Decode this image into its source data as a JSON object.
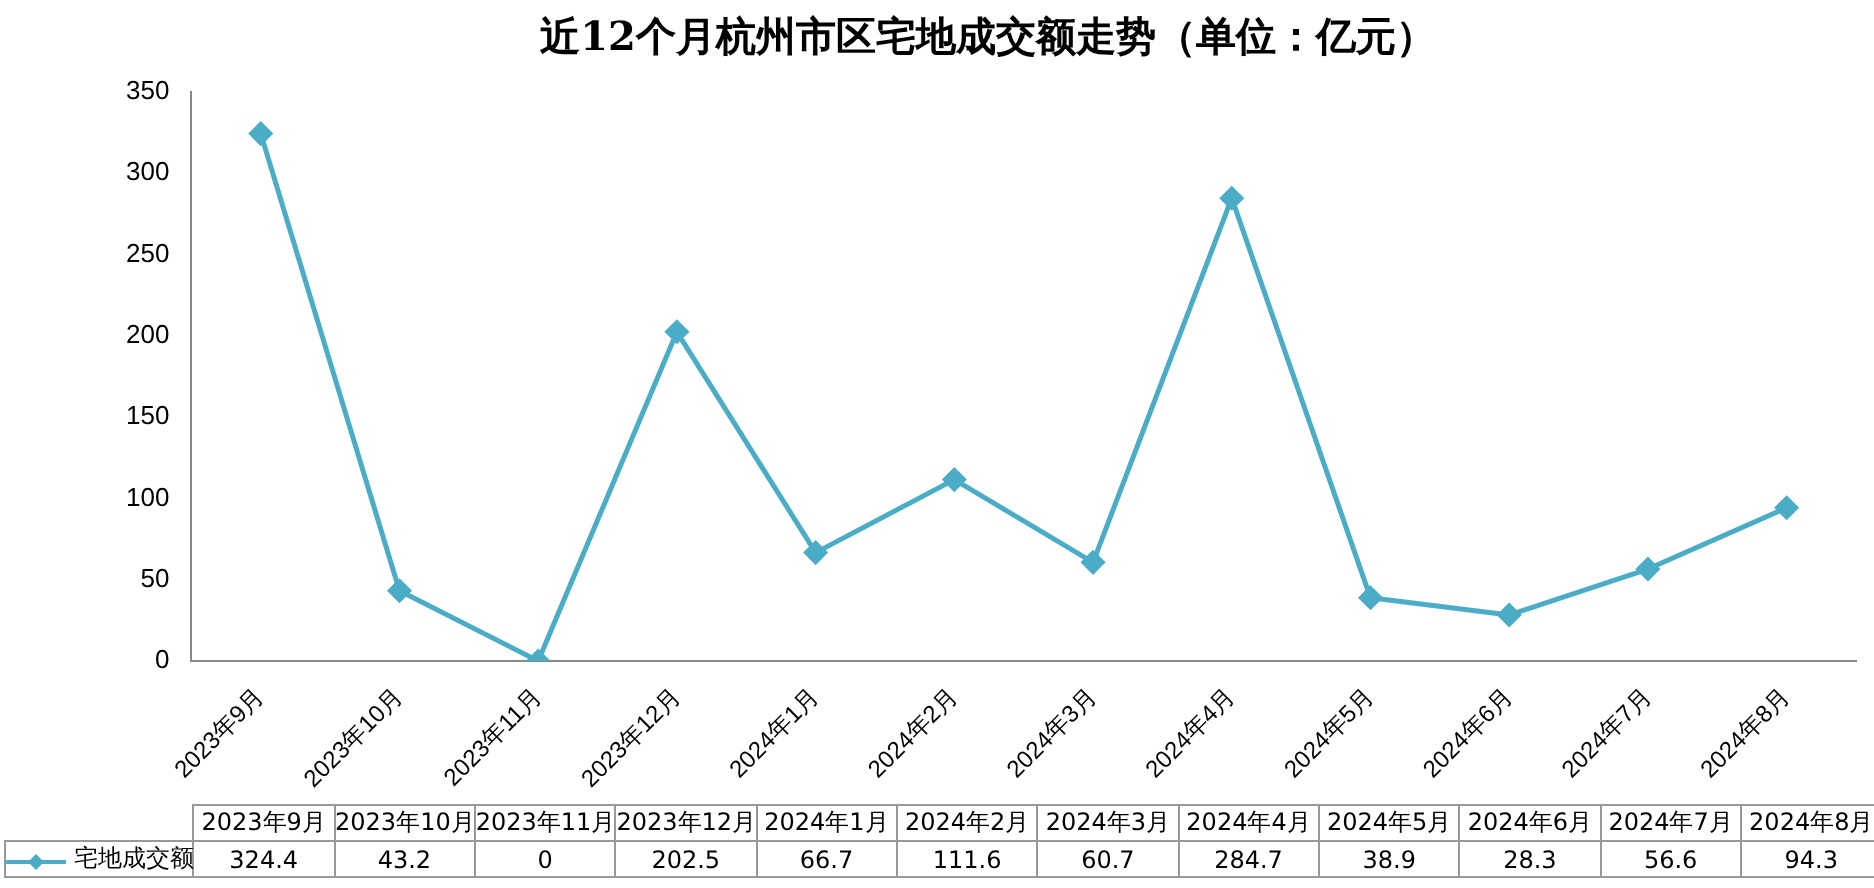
{
  "chart_data": {
    "type": "line",
    "title": "近12个月杭州市区宅地成交额走势（单位：亿元）",
    "categories": [
      "2023年9月",
      "2023年10月",
      "2023年11月",
      "2023年12月",
      "2024年1月",
      "2024年2月",
      "2024年3月",
      "2024年4月",
      "2024年5月",
      "2024年6月",
      "2024年7月",
      "2024年8月"
    ],
    "series": [
      {
        "name": "宅地成交额",
        "color": "#4bacc6",
        "values": [
          324.4,
          43.2,
          0,
          202.5,
          66.7,
          111.6,
          60.7,
          284.7,
          38.9,
          28.3,
          56.6,
          94.3
        ],
        "value_labels": [
          "324.4",
          "43.2",
          "0",
          "202.5",
          "66.7",
          "111.6",
          "60.7",
          "284.7",
          "38.9",
          "28.3",
          "56.6",
          "94.3"
        ]
      }
    ],
    "ylim": [
      0,
      350
    ],
    "yticks": [
      0,
      50,
      100,
      150,
      200,
      250,
      300,
      350
    ],
    "grid": false,
    "legend": "bottom",
    "marker": "diamond",
    "line_style": "solid"
  }
}
